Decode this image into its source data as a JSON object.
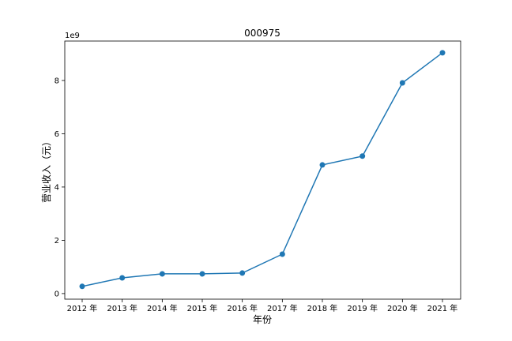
{
  "chart_data": {
    "type": "line",
    "title": "000975",
    "x_label": "年份",
    "y_label": "营业收入（元）",
    "y_offset_label": "1e9",
    "categories": [
      "2012 年",
      "2013 年",
      "2014 年",
      "2015 年",
      "2016 年",
      "2017 年",
      "2018 年",
      "2019 年",
      "2020 年",
      "2021 年"
    ],
    "series": [
      {
        "color": "#1f77b4",
        "values": [
          0.27,
          0.59,
          0.74,
          0.74,
          0.77,
          1.48,
          4.83,
          5.16,
          7.91,
          9.04
        ]
      }
    ],
    "ylim": [
      -0.21,
      9.48
    ],
    "yticks": [
      0,
      2,
      4,
      6,
      8
    ],
    "grid": false
  }
}
